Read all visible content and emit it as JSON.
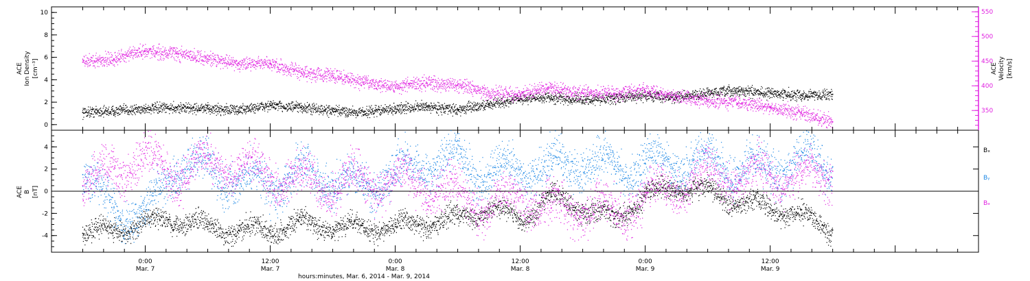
{
  "chart_data": [
    {
      "type": "scatter",
      "panel": "top",
      "left_axis": {
        "label_lines": [
          "ACE",
          "Ion Density",
          "[cm⁻³]"
        ],
        "ylim": [
          -0.5,
          10.5
        ],
        "ticks": [
          0,
          2,
          4,
          6,
          8,
          10
        ]
      },
      "right_axis": {
        "label_lines": [
          "ACE",
          "Velocity",
          "[km/s]"
        ],
        "ylim": [
          310,
          560
        ],
        "ticks": [
          350,
          400,
          450,
          500,
          550
        ],
        "color": "#e020e0"
      },
      "series": [
        {
          "role": "density",
          "axis": "left",
          "color": "#000000",
          "x": [
            -6,
            -3,
            0,
            3,
            6,
            9,
            12,
            15,
            18,
            21,
            24,
            27,
            30,
            33,
            36,
            39,
            42,
            45,
            48,
            51,
            54,
            57,
            60,
            63,
            66
          ],
          "y": [
            1.1,
            1.2,
            1.4,
            1.5,
            1.4,
            1.3,
            1.7,
            1.5,
            1.2,
            1.1,
            1.4,
            1.6,
            1.3,
            1.8,
            2.3,
            2.4,
            2.2,
            2.3,
            2.6,
            2.4,
            2.8,
            3.0,
            2.8,
            2.6,
            2.7
          ],
          "spread": 0.4
        },
        {
          "role": "velocity",
          "axis": "right",
          "color": "#e020e0",
          "x": [
            -6,
            -3,
            0,
            3,
            6,
            9,
            12,
            15,
            18,
            21,
            24,
            27,
            30,
            33,
            36,
            39,
            42,
            45,
            48,
            51,
            54,
            57,
            60,
            63,
            66
          ],
          "y": [
            448,
            455,
            470,
            465,
            455,
            445,
            445,
            425,
            420,
            408,
            398,
            406,
            402,
            385,
            382,
            395,
            385,
            385,
            390,
            378,
            370,
            365,
            357,
            345,
            327
          ],
          "spread": 12
        }
      ]
    },
    {
      "type": "scatter",
      "panel": "bottom",
      "left_axis": {
        "label_lines": [
          "ACE",
          "B",
          "[nT]"
        ],
        "ylim": [
          -5.5,
          5.5
        ],
        "ticks": [
          -4,
          -2,
          0,
          2,
          4
        ]
      },
      "zero_line": true,
      "legend": [
        "Bₓ",
        "Bᵧ",
        "Bₔ"
      ],
      "series": [
        {
          "name": "Bx",
          "color": "#000000",
          "x": [
            -6,
            -3,
            0,
            3,
            6,
            9,
            12,
            15,
            18,
            21,
            24,
            27,
            30,
            33,
            36,
            39,
            42,
            45,
            48,
            51,
            54,
            57,
            60,
            63,
            66
          ],
          "y": [
            -3.8,
            -3.5,
            -3.0,
            -2.5,
            -3.2,
            -3.5,
            -3.5,
            -3.0,
            -3.2,
            -3.3,
            -3.2,
            -2.8,
            -2.5,
            -1.5,
            -2.5,
            -0.5,
            -1.5,
            -2.5,
            -0.5,
            0.5,
            0.0,
            -1.0,
            -1.5,
            -2.2,
            -3.5
          ],
          "spread": 0.8
        },
        {
          "name": "By",
          "color": "#1e88e5",
          "x": [
            -6,
            -3,
            0,
            3,
            6,
            9,
            12,
            15,
            18,
            21,
            24,
            27,
            30,
            33,
            36,
            39,
            42,
            45,
            48,
            51,
            54,
            57,
            60,
            63,
            66
          ],
          "y": [
            1.5,
            -1.5,
            -2.5,
            2.5,
            2.0,
            1.0,
            0.5,
            1.5,
            1.0,
            0.5,
            1.5,
            2.5,
            2.8,
            1.5,
            2.0,
            2.0,
            2.8,
            2.0,
            2.5,
            2.5,
            2.5,
            2.0,
            2.0,
            3.0,
            2.2
          ],
          "spread": 1.6
        },
        {
          "name": "Bz",
          "color": "#e020e0",
          "x": [
            -6,
            -3,
            0,
            3,
            6,
            9,
            12,
            15,
            18,
            21,
            24,
            27,
            30,
            33,
            36,
            39,
            42,
            45,
            48,
            51,
            54,
            57,
            60,
            63,
            66
          ],
          "y": [
            0.5,
            2.0,
            3.0,
            1.5,
            2.5,
            2.0,
            1.5,
            1.0,
            0.5,
            1.0,
            1.0,
            0.5,
            -0.5,
            -1.5,
            -0.5,
            -1.5,
            -1.5,
            -2.0,
            -0.5,
            0.5,
            1.5,
            1.0,
            1.5,
            1.0,
            1.8
          ],
          "spread": 1.6
        }
      ]
    }
  ],
  "x_axis": {
    "range_hours": [
      -9,
      80
    ],
    "ticks": [
      {
        "h": 0,
        "time": "0:00",
        "date": "Mar. 7"
      },
      {
        "h": 12,
        "time": "12:00",
        "date": "Mar. 7"
      },
      {
        "h": 24,
        "time": "0:00",
        "date": "Mar. 8"
      },
      {
        "h": 36,
        "time": "12:00",
        "date": "Mar. 8"
      },
      {
        "h": 48,
        "time": "0:00",
        "date": "Mar. 9"
      },
      {
        "h": 60,
        "time": "12:00",
        "date": "Mar. 9"
      }
    ],
    "label": "hours:minutes, Mar.  6, 2014 - Mar.  9, 2014"
  }
}
